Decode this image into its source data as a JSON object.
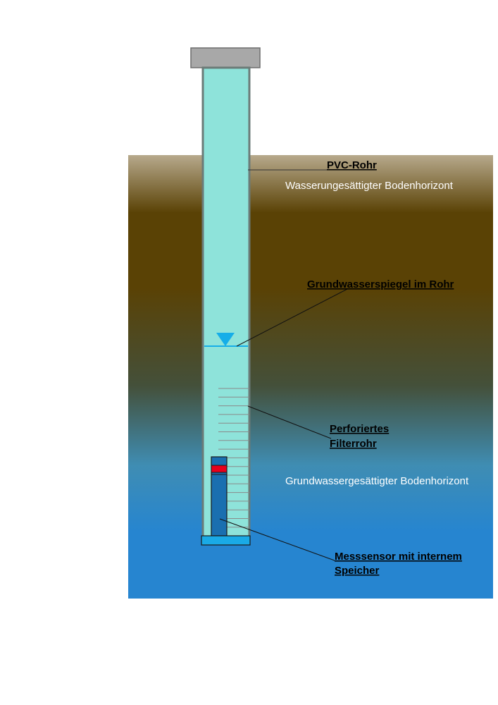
{
  "labels": {
    "pvc_pipe": "PVC-Rohr",
    "unsaturated_zone": "Wasserungesättigter Bodenhorizont",
    "water_level": "Grundwasserspiegel im Rohr",
    "filter_line1": "Perforiertes",
    "filter_line2": "Filterrohr",
    "saturated_zone": "Grundwassergesättigter Bodenhorizont",
    "sensor_line1": "Messsensor mit internem",
    "sensor_line2": "Speicher"
  },
  "colors": {
    "soil_top": "#b7a98c",
    "soil_brown": "#5a4205",
    "soil_mid": "#44503a",
    "water_mid": "#3f8db3",
    "water_deep": "#2685d0",
    "pipe_fill": "#8ee3da",
    "pipe_border": "#6b7b78",
    "cap": "#a8a8a8",
    "water_marker": "#16aee8",
    "sensor": "#1a6fb0",
    "sensor_band": "#e8001c",
    "base_plate": "#1aaae6"
  },
  "icons": {
    "water_level_marker": "inverted-triangle-icon"
  }
}
